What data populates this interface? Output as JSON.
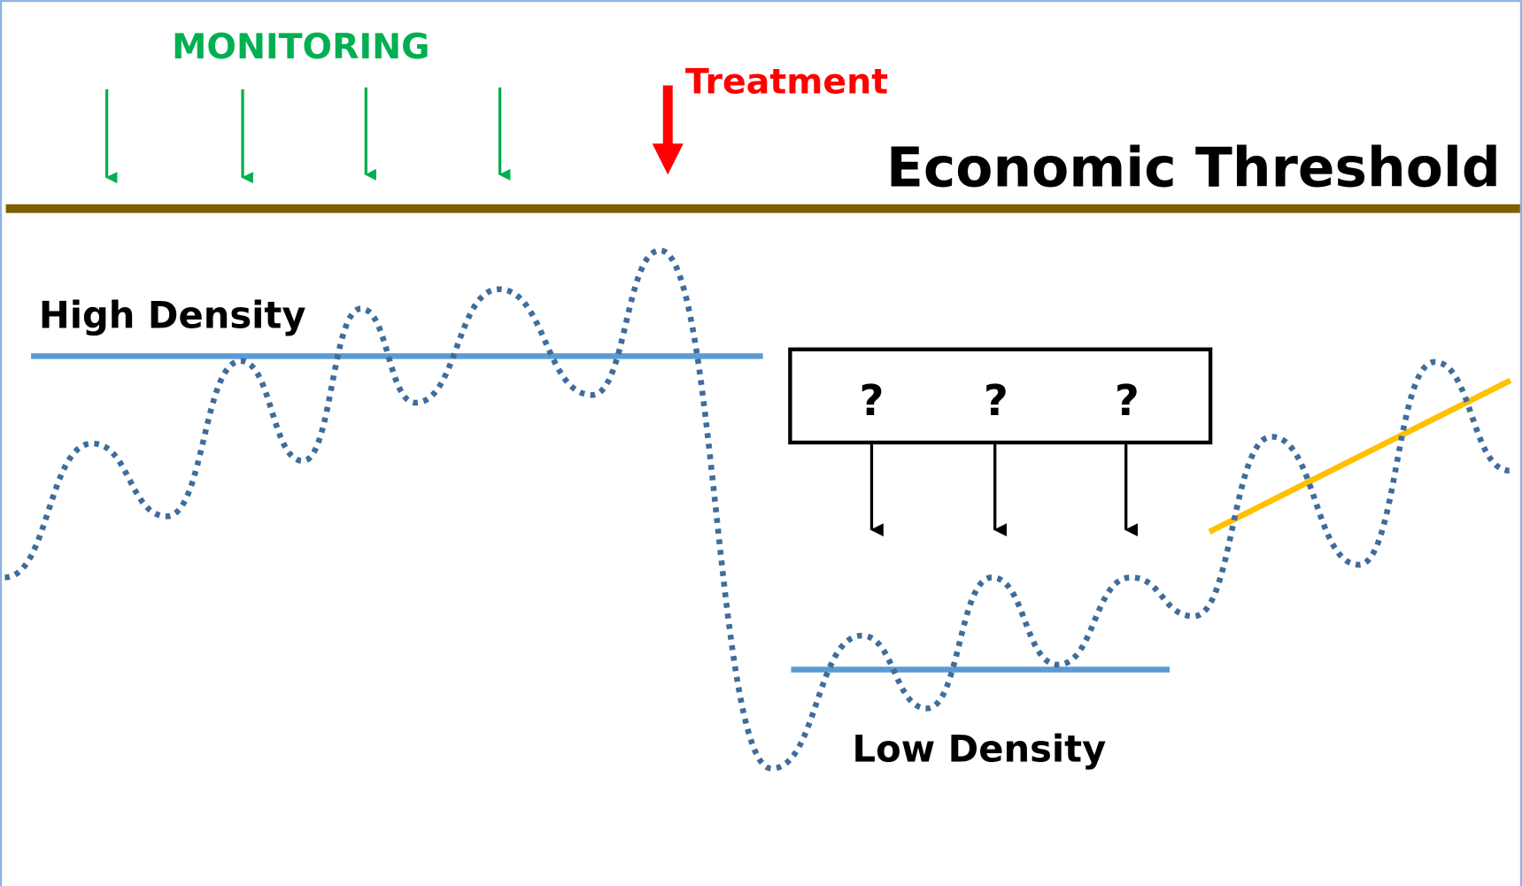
{
  "labels": {
    "monitoring": "MONITORING",
    "treatment": "Treatment",
    "threshold": "Economic Threshold",
    "high": "High Density",
    "low": "Low Density"
  },
  "questions": [
    "?",
    "?",
    "?"
  ]
}
